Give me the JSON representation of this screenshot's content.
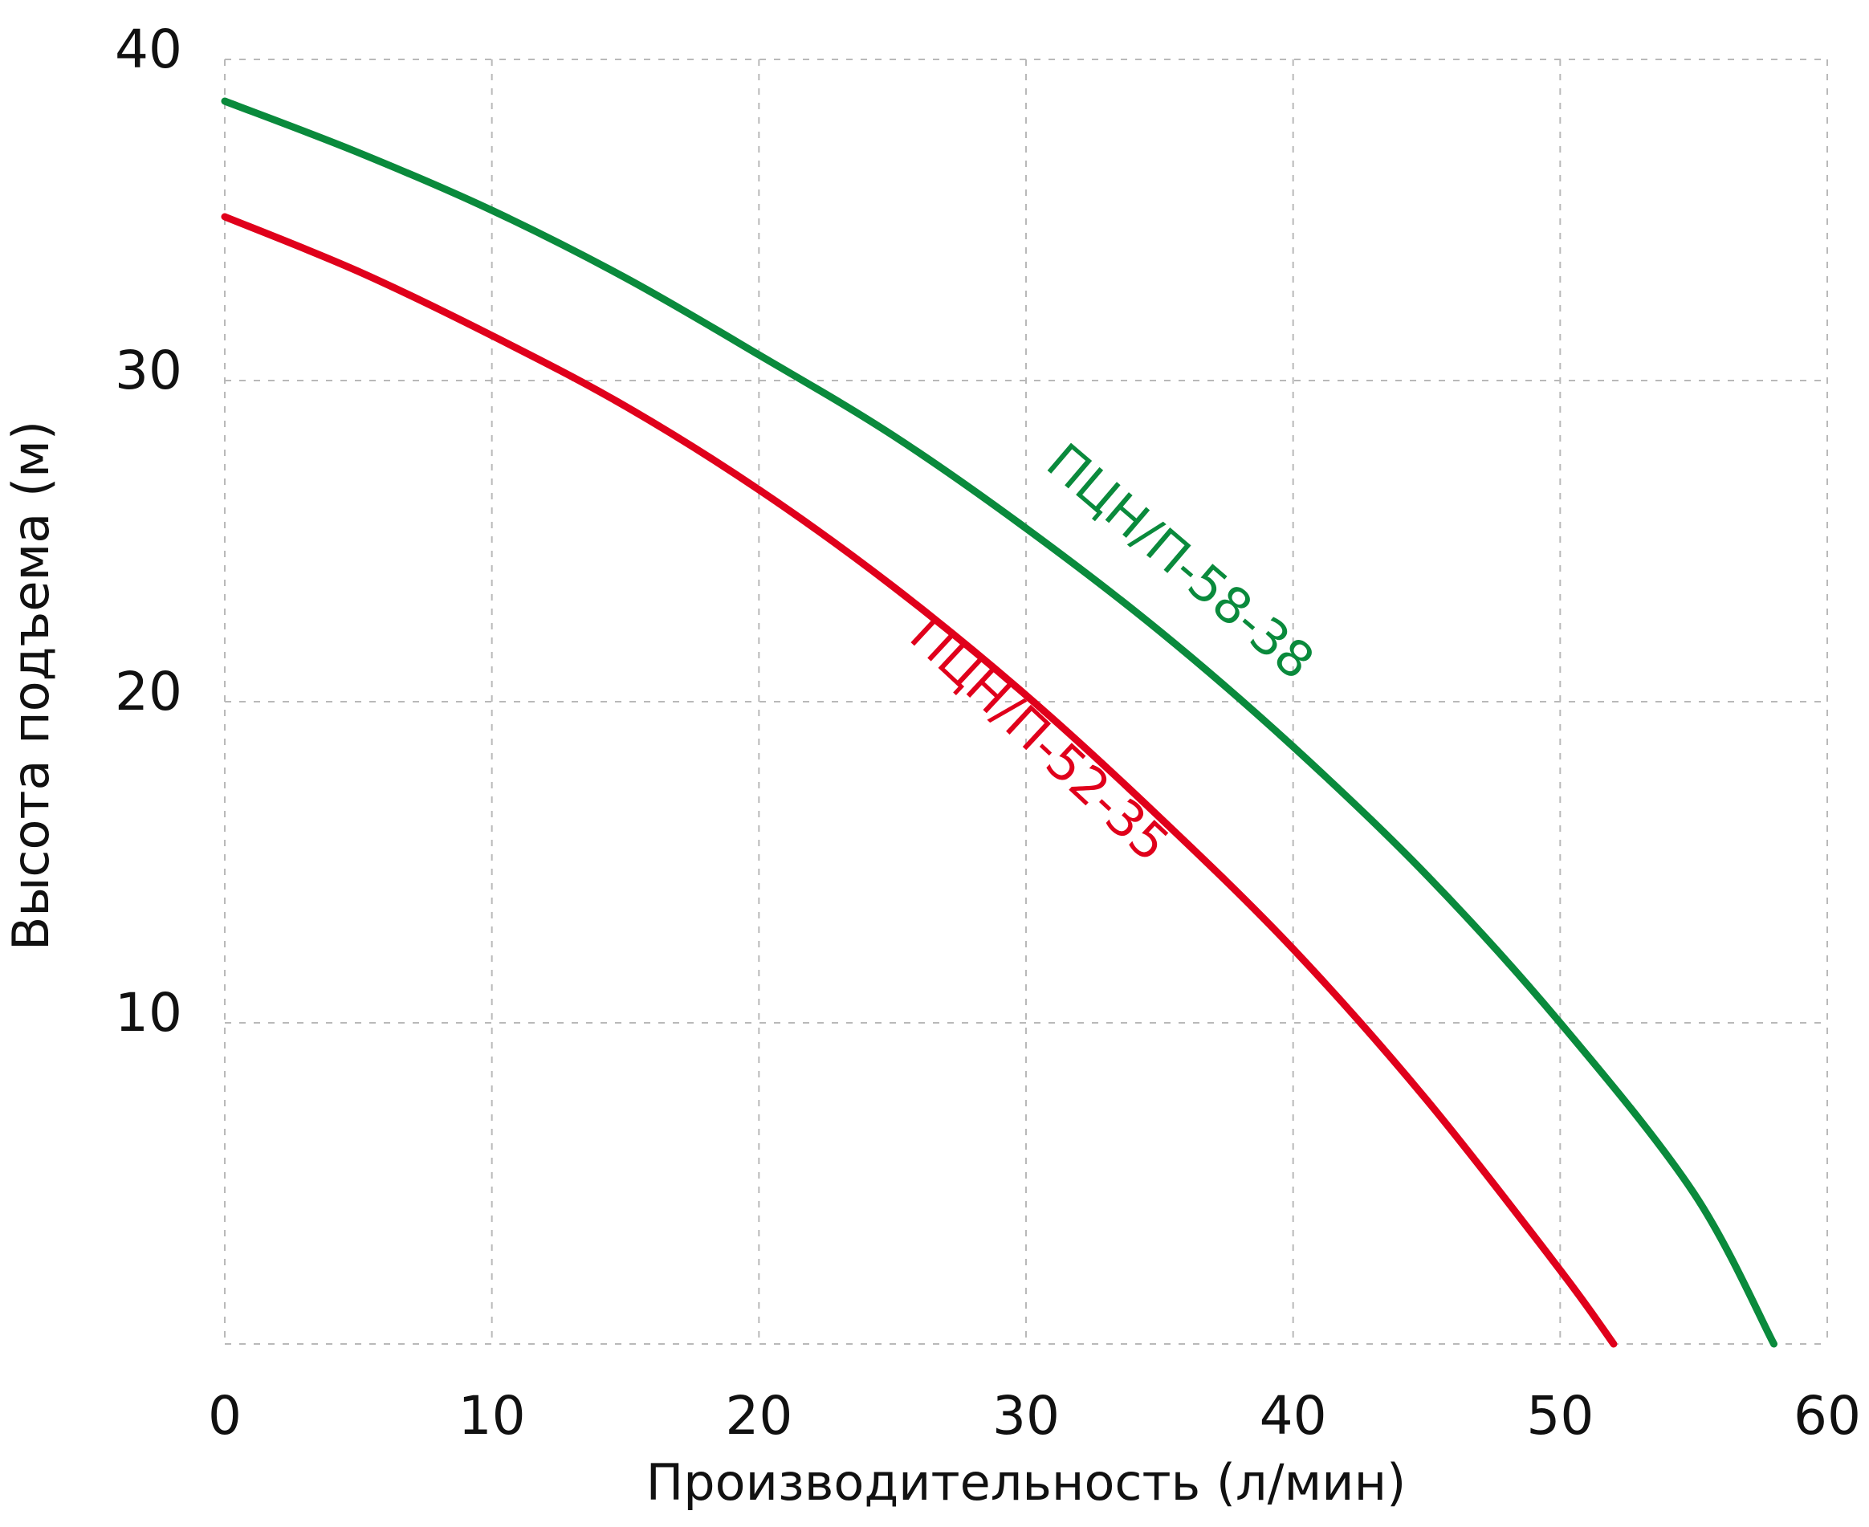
{
  "chart_data": {
    "type": "line",
    "xlabel": "Производительность (л/мин)",
    "ylabel": "Высота подъема (м)",
    "xlim": [
      0,
      60
    ],
    "ylim": [
      0,
      40
    ],
    "xticks": [
      "0",
      "10",
      "20",
      "30",
      "40",
      "50",
      "60"
    ],
    "yticks": [
      "10",
      "20",
      "30",
      "40"
    ],
    "grid": true,
    "series": [
      {
        "name": "ПЦН/П-58-38",
        "color": "#0a8a3c",
        "x": [
          0,
          5,
          10,
          15,
          20,
          25,
          30,
          35,
          40,
          45,
          50,
          55,
          58
        ],
        "y": [
          38.7,
          37.1,
          35.3,
          33.2,
          30.8,
          28.3,
          25.4,
          22.2,
          18.6,
          14.6,
          10.0,
          4.7,
          0.0
        ]
      },
      {
        "name": "ПЦН/П-52-35",
        "color": "#e0001b",
        "x": [
          0,
          5,
          10,
          15,
          20,
          25,
          30,
          35,
          40,
          45,
          50,
          52
        ],
        "y": [
          35.1,
          33.4,
          31.4,
          29.2,
          26.6,
          23.6,
          20.2,
          16.4,
          12.3,
          7.6,
          2.3,
          0.0
        ]
      }
    ]
  }
}
